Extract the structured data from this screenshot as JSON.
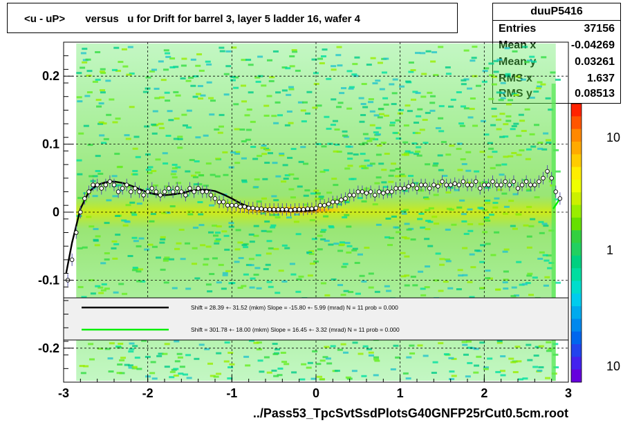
{
  "title": "<u - uP>       versus   u for Drift for barrel 3, layer 5 ladder 16, wafer 4",
  "stats": {
    "name": "duuP5416",
    "rows": [
      {
        "key": "Entries",
        "value": "37156"
      },
      {
        "key": "Mean x",
        "value": "-0.04269"
      },
      {
        "key": "Mean y",
        "value": "0.03261"
      },
      {
        "key": "RMS x",
        "value": "1.637"
      },
      {
        "key": "RMS y",
        "value": "0.08513"
      }
    ]
  },
  "x_label": "../Pass53_TpcSvtSsdPlotsG40GNFP25rCut0.5cm.root",
  "colors": {
    "fit_black": "#000000",
    "fit_green": "#00ee00",
    "frame": "#000000"
  },
  "chart_data": {
    "type": "scatter",
    "xlim": [
      -3,
      3
    ],
    "ylim": [
      -0.25,
      0.25
    ],
    "x_ticks": [
      "-3",
      "-2",
      "-1",
      "0",
      "1",
      "2",
      "3"
    ],
    "y_ticks": [
      "-0.2",
      "-0.1",
      "0",
      "0.1",
      "0.2"
    ],
    "grid": true,
    "colorbar_ticks": [
      "10",
      "1",
      "10"
    ],
    "legend": [
      {
        "text": "Shift =    28.39 +- 31.52 (mkm) Slope =   -15.80 +- 5.99 (mrad)  N = 11 prob = 0.000",
        "color": "#000000"
      },
      {
        "text": "Shift =   301.78 +- 18.00 (mkm) Slope =    16.45 +- 3.32 (mrad)  N = 11 prob = 0.000",
        "color": "#00ee00"
      }
    ],
    "profile_points": {
      "x": [
        -2.95,
        -2.9,
        -2.85,
        -2.8,
        -2.75,
        -2.7,
        -2.65,
        -2.6,
        -2.55,
        -2.5,
        -2.45,
        -2.4,
        -2.35,
        -2.3,
        -2.25,
        -2.2,
        -2.15,
        -2.1,
        -2.05,
        -2.0,
        -1.95,
        -1.9,
        -1.85,
        -1.8,
        -1.75,
        -1.7,
        -1.65,
        -1.6,
        -1.55,
        -1.5,
        -1.45,
        -1.4,
        -1.35,
        -1.3,
        -1.25,
        -1.2,
        -1.15,
        -1.1,
        -1.05,
        -1.0,
        -0.95,
        -0.9,
        -0.85,
        -0.8,
        -0.75,
        -0.7,
        -0.65,
        -0.6,
        -0.55,
        -0.5,
        -0.45,
        -0.4,
        -0.35,
        -0.3,
        -0.25,
        -0.2,
        -0.15,
        -0.1,
        -0.05,
        0.0,
        0.05,
        0.1,
        0.15,
        0.2,
        0.25,
        0.3,
        0.35,
        0.4,
        0.45,
        0.5,
        0.55,
        0.6,
        0.65,
        0.7,
        0.75,
        0.8,
        0.85,
        0.9,
        0.95,
        1.0,
        1.05,
        1.1,
        1.15,
        1.2,
        1.25,
        1.3,
        1.35,
        1.4,
        1.45,
        1.5,
        1.55,
        1.6,
        1.65,
        1.7,
        1.75,
        1.8,
        1.85,
        1.9,
        1.95,
        2.0,
        2.05,
        2.1,
        2.15,
        2.2,
        2.25,
        2.3,
        2.35,
        2.4,
        2.45,
        2.5,
        2.55,
        2.6,
        2.65,
        2.7,
        2.75,
        2.8,
        2.85,
        2.9
      ],
      "y": [
        -0.1,
        -0.07,
        -0.03,
        0.0,
        0.02,
        0.03,
        0.04,
        0.04,
        0.035,
        0.04,
        0.045,
        0.04,
        0.03,
        0.035,
        0.04,
        0.03,
        0.035,
        0.03,
        0.025,
        0.03,
        0.035,
        0.03,
        0.025,
        0.03,
        0.035,
        0.03,
        0.035,
        0.03,
        0.025,
        0.035,
        0.03,
        0.035,
        0.03,
        0.03,
        0.025,
        0.02,
        0.015,
        0.015,
        0.01,
        0.01,
        0.01,
        0.008,
        0.008,
        0.006,
        0.006,
        0.005,
        0.005,
        0.004,
        0.004,
        0.004,
        0.004,
        0.004,
        0.004,
        0.003,
        0.004,
        0.004,
        0.004,
        0.005,
        0.005,
        0.006,
        0.01,
        0.01,
        0.012,
        0.015,
        0.015,
        0.018,
        0.02,
        0.025,
        0.025,
        0.03,
        0.03,
        0.028,
        0.03,
        0.025,
        0.03,
        0.028,
        0.03,
        0.03,
        0.035,
        0.035,
        0.035,
        0.038,
        0.04,
        0.035,
        0.04,
        0.04,
        0.035,
        0.04,
        0.038,
        0.045,
        0.04,
        0.04,
        0.042,
        0.04,
        0.045,
        0.04,
        0.04,
        0.045,
        0.035,
        0.04,
        0.04,
        0.045,
        0.04,
        0.04,
        0.045,
        0.04,
        0.045,
        0.035,
        0.04,
        0.045,
        0.04,
        0.04,
        0.045,
        0.05,
        0.06,
        0.05,
        0.03,
        0.02
      ]
    },
    "fit_black": {
      "x": [
        -2.97,
        -2.9,
        -2.8,
        -2.7,
        -2.6,
        -2.5,
        -2.4,
        -2.3,
        -2.2,
        -2.1,
        -2.0,
        -1.9,
        -1.8,
        -1.7,
        -1.6,
        -1.5,
        -1.4,
        -1.3,
        -1.2,
        -1.1,
        -1.0,
        -0.9,
        -0.8,
        -0.7,
        -0.6,
        -0.5,
        -0.4,
        -0.3,
        -0.2,
        -0.1,
        0.0
      ],
      "y": [
        -0.09,
        -0.045,
        0.005,
        0.03,
        0.04,
        0.044,
        0.045,
        0.043,
        0.039,
        0.034,
        0.029,
        0.026,
        0.025,
        0.026,
        0.028,
        0.031,
        0.033,
        0.033,
        0.031,
        0.026,
        0.02,
        0.013,
        0.008,
        0.005,
        0.003,
        0.002,
        0.002,
        0.002,
        0.002,
        0.002,
        0.003
      ]
    },
    "fit_green": {
      "x": [
        2.82,
        2.89
      ],
      "y": [
        0.005,
        0.018
      ]
    }
  }
}
